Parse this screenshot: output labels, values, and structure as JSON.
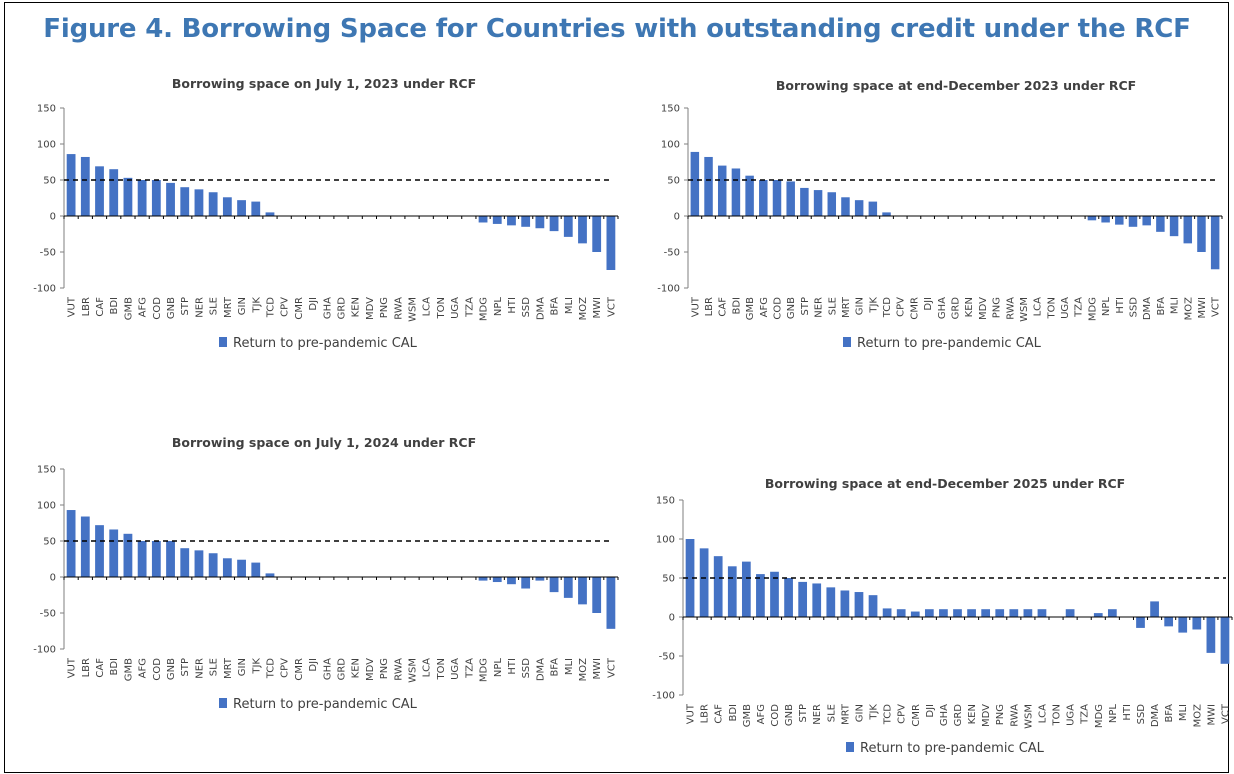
{
  "figure": {
    "title": "Figure 4. Borrowing Space for Countries with outstanding credit under the RCF"
  },
  "chart_data": [
    {
      "type": "bar",
      "title": "Borrowing space on July 1, 2023 under RCF",
      "categories": [
        "VUT",
        "LBR",
        "CAF",
        "BDI",
        "GMB",
        "AFG",
        "COD",
        "GNB",
        "STP",
        "NER",
        "SLE",
        "MRT",
        "GIN",
        "TJK",
        "TCD",
        "CPV",
        "CMR",
        "DJI",
        "GHA",
        "GRD",
        "KEN",
        "MDV",
        "PNG",
        "RWA",
        "WSM",
        "LCA",
        "TON",
        "UGA",
        "TZA",
        "MDG",
        "NPL",
        "HTI",
        "SSD",
        "DMA",
        "BFA",
        "MLI",
        "MOZ",
        "MWI",
        "VCT"
      ],
      "series": [
        {
          "name": "Return to pre-pandemic CAL",
          "values": [
            86,
            82,
            69,
            65,
            53,
            50,
            50,
            46,
            40,
            37,
            33,
            26,
            22,
            20,
            5,
            0,
            0,
            0,
            0,
            0,
            0,
            0,
            0,
            0,
            0,
            0,
            0,
            0,
            0,
            -9,
            -11,
            -13,
            -15,
            -17,
            -21,
            -29,
            -38,
            -50,
            -75
          ]
        }
      ],
      "yticks": [
        "150",
        "100",
        "50",
        "0",
        "-50",
        "-100"
      ],
      "ylim": [
        -100,
        150
      ],
      "reference_line": 50,
      "legend_position": "bottom"
    },
    {
      "type": "bar",
      "title": "Borrowing space at end-December 2023 under RCF",
      "categories": [
        "VUT",
        "LBR",
        "CAF",
        "BDI",
        "GMB",
        "AFG",
        "COD",
        "GNB",
        "STP",
        "NER",
        "SLE",
        "MRT",
        "GIN",
        "TJK",
        "TCD",
        "CPV",
        "CMR",
        "DJI",
        "GHA",
        "GRD",
        "KEN",
        "MDV",
        "PNG",
        "RWA",
        "WSM",
        "LCA",
        "TON",
        "UGA",
        "TZA",
        "MDG",
        "NPL",
        "HTI",
        "SSD",
        "DMA",
        "BFA",
        "MLI",
        "MOZ",
        "MWI",
        "VCT"
      ],
      "series": [
        {
          "name": "Return to pre-pandemic CAL",
          "values": [
            89,
            82,
            70,
            66,
            56,
            50,
            50,
            48,
            39,
            36,
            33,
            26,
            22,
            20,
            5,
            0,
            0,
            0,
            0,
            0,
            0,
            0,
            0,
            0,
            0,
            0,
            0,
            0,
            0,
            -6,
            -9,
            -12,
            -15,
            -13,
            -22,
            -28,
            -38,
            -50,
            -74
          ]
        }
      ],
      "yticks": [
        "150",
        "100",
        "50",
        "0",
        "-50",
        "-100"
      ],
      "ylim": [
        -100,
        150
      ],
      "reference_line": 50,
      "legend_position": "bottom"
    },
    {
      "type": "bar",
      "title": "Borrowing space on July 1, 2024 under RCF",
      "categories": [
        "VUT",
        "LBR",
        "CAF",
        "BDI",
        "GMB",
        "AFG",
        "COD",
        "GNB",
        "STP",
        "NER",
        "SLE",
        "MRT",
        "GIN",
        "TJK",
        "TCD",
        "CPV",
        "CMR",
        "DJI",
        "GHA",
        "GRD",
        "KEN",
        "MDV",
        "PNG",
        "RWA",
        "WSM",
        "LCA",
        "TON",
        "UGA",
        "TZA",
        "MDG",
        "NPL",
        "HTI",
        "SSD",
        "DMA",
        "BFA",
        "MLI",
        "MOZ",
        "MWI",
        "VCT"
      ],
      "series": [
        {
          "name": "Return to pre-pandemic CAL",
          "values": [
            93,
            84,
            72,
            66,
            60,
            50,
            50,
            50,
            40,
            37,
            33,
            26,
            24,
            20,
            5,
            0,
            0,
            0,
            0,
            0,
            0,
            0,
            0,
            0,
            0,
            0,
            0,
            0,
            0,
            -5,
            -7,
            -10,
            -16,
            -5,
            -21,
            -29,
            -38,
            -50,
            -72
          ]
        }
      ],
      "yticks": [
        "150",
        "100",
        "50",
        "0",
        "-50",
        "-100"
      ],
      "ylim": [
        -100,
        150
      ],
      "reference_line": 50,
      "legend_position": "bottom"
    },
    {
      "type": "bar",
      "title": "Borrowing space at end-December 2025 under RCF",
      "categories": [
        "VUT",
        "LBR",
        "CAF",
        "BDI",
        "GMB",
        "AFG",
        "COD",
        "GNB",
        "STP",
        "NER",
        "SLE",
        "MRT",
        "GIN",
        "TJK",
        "TCD",
        "CPV",
        "CMR",
        "DJI",
        "GHA",
        "GRD",
        "KEN",
        "MDV",
        "PNG",
        "RWA",
        "WSM",
        "LCA",
        "TON",
        "UGA",
        "TZA",
        "MDG",
        "NPL",
        "HTI",
        "SSD",
        "DMA",
        "BFA",
        "MLI",
        "MOZ",
        "MWI",
        "VCT"
      ],
      "series": [
        {
          "name": "Return to pre-pandemic CAL",
          "values": [
            100,
            88,
            78,
            65,
            71,
            55,
            58,
            50,
            45,
            43,
            38,
            34,
            32,
            28,
            11,
            10,
            7,
            10,
            10,
            10,
            10,
            10,
            10,
            10,
            10,
            10,
            0,
            10,
            0,
            5,
            10,
            0,
            -14,
            20,
            -12,
            -20,
            -16,
            -46,
            -60
          ]
        }
      ],
      "yticks": [
        "150",
        "100",
        "50",
        "0",
        "-50",
        "-100"
      ],
      "ylim": [
        -100,
        150
      ],
      "reference_line": 50,
      "legend_position": "bottom"
    }
  ],
  "colors": {
    "bar": "#4472c4",
    "title": "#3e77b3",
    "text": "#404040"
  }
}
